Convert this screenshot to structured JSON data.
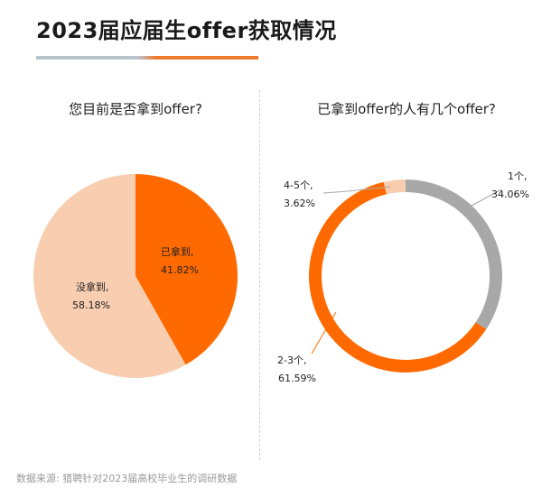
{
  "header": {
    "title": "2023届应届生offer获取情况",
    "accent_colors": [
      "#b8c4cc",
      "#f07a2e"
    ]
  },
  "chart_data": [
    {
      "type": "pie",
      "title": "您目前是否拿到offer?",
      "categories": [
        "已拿到,",
        "没拿到,"
      ],
      "values": [
        41.82,
        58.18
      ],
      "value_labels": [
        "41.82%",
        "58.18%"
      ],
      "colors": [
        "#ff6a00",
        "#f8cdb0"
      ]
    },
    {
      "type": "pie",
      "donut": true,
      "title": "已拿到offer的人有几个offer?",
      "categories": [
        "1个,",
        "2-3个,",
        "4-5个,"
      ],
      "values": [
        34.06,
        61.59,
        3.62
      ],
      "value_labels": [
        "34.06%",
        "61.59%",
        "3.62%"
      ],
      "colors": [
        "#a8a8a8",
        "#ff6a00",
        "#f8cdb0"
      ]
    }
  ],
  "footer": {
    "source": "数据来源:  猎聘针对2023届高校毕业生的调研数据"
  }
}
